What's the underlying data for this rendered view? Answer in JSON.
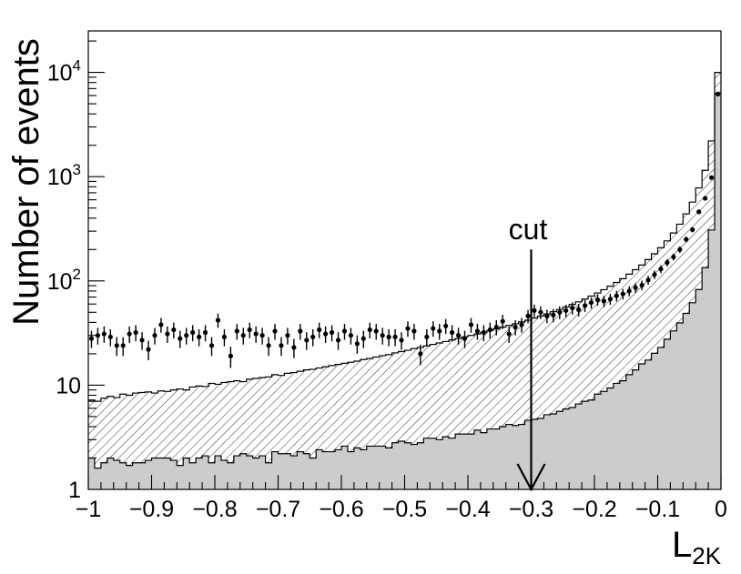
{
  "chart_data": {
    "type": "histogram",
    "title": "",
    "xlabel": "L",
    "xlabel_sub": "2K",
    "ylabel": "Number of events",
    "xlim": [
      -1,
      0
    ],
    "ylim": [
      1,
      25000
    ],
    "y_scale": "log",
    "grid": false,
    "legend": "none",
    "x_ticks": [
      {
        "value": -1,
        "label": "−1"
      },
      {
        "value": -0.9,
        "label": "−0.9"
      },
      {
        "value": -0.8,
        "label": "−0.8"
      },
      {
        "value": -0.7,
        "label": "−0.7"
      },
      {
        "value": -0.6,
        "label": "−0.6"
      },
      {
        "value": -0.5,
        "label": "−0.5"
      },
      {
        "value": -0.4,
        "label": "−0.4"
      },
      {
        "value": -0.3,
        "label": "−0.3"
      },
      {
        "value": -0.2,
        "label": "−0.2"
      },
      {
        "value": -0.1,
        "label": "−0.1"
      },
      {
        "value": 0,
        "label": "0"
      }
    ],
    "y_ticks": [
      {
        "value": 1,
        "label": "1"
      },
      {
        "value": 10,
        "label": "10"
      },
      {
        "value": 100,
        "label": "10",
        "sup": "2"
      },
      {
        "value": 1000,
        "label": "10",
        "sup": "3"
      },
      {
        "value": 10000,
        "label": "10",
        "sup": "4"
      }
    ],
    "annotation": {
      "label": "cut",
      "x": -0.3,
      "y_top": 200
    },
    "colors": {
      "filled": "#cccccc",
      "hatch": "#000000",
      "points": "#000000"
    },
    "series": [
      {
        "kind": "filled_histogram",
        "bin_width": 0.01,
        "bin_low_edges_from": -1,
        "values": [
          2.0,
          1.6,
          1.8,
          2.0,
          1.9,
          1.8,
          1.7,
          1.8,
          1.8,
          1.9,
          2.0,
          2.0,
          2.0,
          1.9,
          1.7,
          2.0,
          1.8,
          2.0,
          2.1,
          1.8,
          2.1,
          1.9,
          1.8,
          2.1,
          2.2,
          2.1,
          2.0,
          2.1,
          1.8,
          2.3,
          2.2,
          2.2,
          2.1,
          2.3,
          2.2,
          2.0,
          2.4,
          2.3,
          2.3,
          2.4,
          2.6,
          2.3,
          2.5,
          2.4,
          2.6,
          2.6,
          2.6,
          2.5,
          2.8,
          2.9,
          2.8,
          2.7,
          2.8,
          3.1,
          3.1,
          3.0,
          3.2,
          3.1,
          3.4,
          3.4,
          3.4,
          3.7,
          3.5,
          3.8,
          3.8,
          4.0,
          4.2,
          4.1,
          4.2,
          4.6,
          4.7,
          4.8,
          5.2,
          5.3,
          5.6,
          5.9,
          6.1,
          6.6,
          7.0,
          7.2,
          8.2,
          8.7,
          9.4,
          10.4,
          11.0,
          12.6,
          14.0,
          16.0,
          17.4,
          20.2,
          23.0,
          27.6,
          33.1,
          39.5,
          48.8,
          61.7,
          82.7,
          134,
          308,
          6300
        ]
      },
      {
        "kind": "hatched_band",
        "bin_width": 0.01,
        "bin_low_edges_from": -1,
        "upper": [
          7.2,
          7.0,
          7.5,
          7.8,
          7.6,
          8.2,
          8.0,
          8.4,
          8.5,
          8.6,
          8.4,
          8.8,
          8.7,
          9.0,
          9.2,
          9.0,
          9.6,
          9.8,
          9.7,
          10.4,
          10.2,
          10.6,
          10.8,
          11.0,
          10.8,
          11.4,
          11.6,
          11.8,
          12.0,
          12.6,
          12.4,
          13.0,
          13.2,
          13.6,
          14.0,
          14.2,
          14.6,
          15.0,
          15.4,
          15.8,
          16.2,
          16.6,
          17.0,
          17.6,
          18.0,
          18.6,
          19.2,
          19.6,
          20.4,
          21.0,
          21.6,
          22.4,
          23.0,
          23.8,
          24.6,
          25.4,
          26.2,
          27.2,
          28.0,
          29.0,
          30.0,
          31.0,
          32.2,
          33.4,
          34.6,
          36.0,
          37.4,
          38.8,
          40.4,
          42.0,
          44.0,
          46.0,
          48.2,
          50.6,
          53.2,
          56.2,
          59.4,
          63.0,
          67.0,
          71.6,
          76.6,
          82.4,
          89.0,
          96.6,
          105,
          116,
          128,
          142,
          160,
          182,
          208,
          242,
          288,
          350,
          440,
          570,
          780,
          1150,
          2200,
          10000
        ],
        "lower": [
          2.0,
          1.6,
          1.8,
          2.0,
          1.9,
          1.8,
          1.7,
          1.8,
          1.8,
          1.9,
          2.0,
          2.0,
          2.0,
          1.9,
          1.7,
          2.0,
          1.8,
          2.0,
          2.1,
          1.8,
          2.1,
          1.9,
          1.8,
          2.1,
          2.2,
          2.1,
          2.0,
          2.1,
          1.8,
          2.3,
          2.2,
          2.2,
          2.1,
          2.3,
          2.2,
          2.0,
          2.4,
          2.3,
          2.3,
          2.4,
          2.6,
          2.3,
          2.5,
          2.4,
          2.6,
          2.6,
          2.6,
          2.5,
          2.8,
          2.9,
          2.8,
          2.7,
          2.8,
          3.1,
          3.1,
          3.0,
          3.2,
          3.1,
          3.4,
          3.4,
          3.4,
          3.7,
          3.5,
          3.8,
          3.8,
          4.0,
          4.2,
          4.1,
          4.2,
          4.6,
          4.7,
          4.8,
          5.2,
          5.3,
          5.6,
          5.9,
          6.1,
          6.6,
          7.0,
          7.2,
          8.2,
          8.7,
          9.4,
          10.4,
          11.0,
          12.6,
          14.0,
          16.0,
          17.4,
          20.2,
          23.0,
          27.6,
          33.1,
          39.5,
          48.8,
          61.7,
          82.7,
          134,
          308,
          6300
        ]
      },
      {
        "kind": "points_with_errors",
        "x": [
          -0.995,
          -0.985,
          -0.975,
          -0.965,
          -0.955,
          -0.945,
          -0.935,
          -0.925,
          -0.915,
          -0.905,
          -0.895,
          -0.885,
          -0.875,
          -0.865,
          -0.855,
          -0.845,
          -0.835,
          -0.825,
          -0.815,
          -0.805,
          -0.795,
          -0.785,
          -0.775,
          -0.765,
          -0.755,
          -0.745,
          -0.735,
          -0.725,
          -0.715,
          -0.705,
          -0.695,
          -0.685,
          -0.675,
          -0.665,
          -0.655,
          -0.645,
          -0.635,
          -0.625,
          -0.615,
          -0.605,
          -0.595,
          -0.585,
          -0.575,
          -0.565,
          -0.555,
          -0.545,
          -0.535,
          -0.525,
          -0.515,
          -0.505,
          -0.495,
          -0.485,
          -0.475,
          -0.465,
          -0.455,
          -0.445,
          -0.435,
          -0.425,
          -0.415,
          -0.405,
          -0.395,
          -0.385,
          -0.375,
          -0.365,
          -0.355,
          -0.345,
          -0.335,
          -0.325,
          -0.315,
          -0.305,
          -0.295,
          -0.285,
          -0.275,
          -0.265,
          -0.255,
          -0.245,
          -0.235,
          -0.225,
          -0.215,
          -0.205,
          -0.195,
          -0.185,
          -0.175,
          -0.165,
          -0.155,
          -0.145,
          -0.135,
          -0.125,
          -0.115,
          -0.105,
          -0.095,
          -0.085,
          -0.075,
          -0.065,
          -0.055,
          -0.045,
          -0.035,
          -0.025,
          -0.015,
          -0.005
        ],
        "y": [
          28,
          30,
          31,
          29,
          24,
          24,
          31,
          32,
          27,
          22,
          30,
          38,
          31,
          34,
          28,
          30,
          32,
          29,
          32,
          24,
          42,
          29,
          19,
          33,
          30,
          34,
          31,
          30,
          24,
          33,
          24,
          30,
          23,
          33,
          27,
          29,
          34,
          31,
          32,
          27,
          33,
          30,
          25,
          28,
          34,
          33,
          30,
          29,
          29,
          27,
          35,
          33,
          20,
          29,
          35,
          33,
          37,
          32,
          30,
          28,
          38,
          33,
          32,
          34,
          36,
          41,
          31,
          36,
          38,
          46,
          52,
          50,
          46,
          47,
          50,
          52,
          55,
          53,
          58,
          62,
          66,
          64,
          67,
          72,
          75,
          80,
          86,
          91,
          102,
          115,
          130,
          150,
          170,
          200,
          250,
          310,
          460,
          620,
          980,
          6200
        ]
      }
    ]
  }
}
